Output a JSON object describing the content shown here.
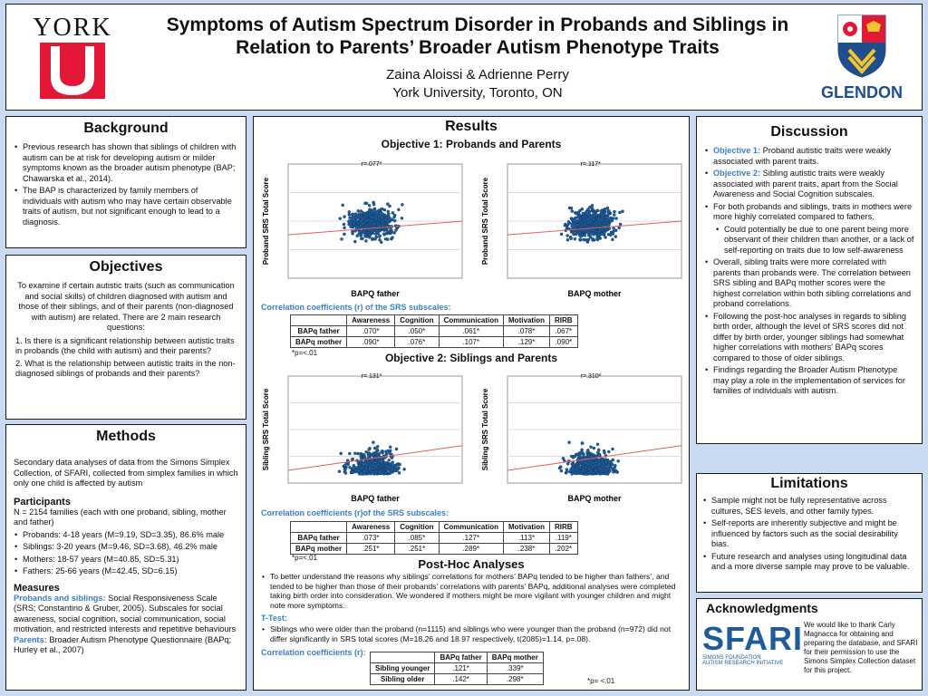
{
  "header": {
    "title_line1": "Symptoms of Autism Spectrum Disorder in Probands and Siblings in",
    "title_line2": "Relation to Parents’ Broader Autism Phenotype Traits",
    "authors": "Zaina Aloissi & Adrienne Perry",
    "affiliation": "York University, Toronto, ON",
    "left_logo_text": "YORK",
    "right_logo_text": "GLENDON"
  },
  "background": {
    "title": "Background",
    "bullets": [
      "Previous research has shown that siblings of children with autism can be at risk for developing autism or milder symptoms known as the broader autism phenotype (BAP; Chawarska et al., 2014).",
      "The BAP is characterized by family members of individuals with autism who may have certain observable traits of autism, but not significant enough to lead to a diagnosis."
    ]
  },
  "objectives": {
    "title": "Objectives",
    "intro": "To examine if certain autistic traits (such as communication and social skills) of children diagnosed with autism and those of their siblings, and of their parents (non-diagnosed with autism) are related. There are 2 main research questions:",
    "q1": "1. Is there is a significant relationship between autistic traits in probands (the child with autism) and their parents?",
    "q2": "2. What is the relationship between autistic traits in the non-diagnosed siblings of probands and their parents?"
  },
  "methods": {
    "title": "Methods",
    "intro": "Secondary data analyses of data from the Simons Simplex Collection, of SFARI, collected from simplex families in which only one child is affected by autism",
    "participants_title": "Participants",
    "participants_text": "N = 2154 families (each with one proband, sibling, mother and father)",
    "participants": [
      "Probands: 4-18 years (M=9.19, SD=3.35), 86.6% male",
      "Siblings: 3-20 years (M=9.46, SD=3.68), 46.2% male",
      "Mothers: 18-57 years (M=40.85, SD=5.31)",
      "Fathers: 25-66 years (M=42.45, SD=6.15)"
    ],
    "measures_title": "Measures",
    "measure1_label": "Probands and siblings:",
    "measure1_text": " Social Responsiveness Scale (SRS; Constantino & Gruber, 2005). Subscales for social awareness, social cognition, social communication, social motivation, and restricted interests and repetitive behaviours",
    "measure2_label": "Parents:",
    "measure2_text": " Broader Autism Phenotype Questionnaire (BAPq; Hurley et al., 2007)"
  },
  "results": {
    "title": "Results",
    "obj1_title": "Objective 1: Probands and Parents",
    "obj2_title": "Objective 2: Siblings and Parents",
    "plots": [
      {
        "r": "r=.077*",
        "xlabel": "BAPQ father",
        "ylabel": "Proband SRS Total Score"
      },
      {
        "r": "r=.117*",
        "xlabel": "BAPQ mother",
        "ylabel": "Proband SRS Total Score"
      },
      {
        "r": "r=.131*",
        "xlabel": "BAPQ father",
        "ylabel": "Sibling SRS Total Score"
      },
      {
        "r": "r=.310*",
        "xlabel": "BAPQ mother",
        "ylabel": "Sibling SRS Total Score"
      }
    ],
    "corr_caption1": "Correlation coefficients (r) of the SRS subscales:",
    "corr_caption2": "Correlation coefficients (r)of the SRS subscales:",
    "columns": [
      "",
      "Awareness",
      "Cognition",
      "Communication",
      "Motivation",
      "RIRB"
    ],
    "table1": [
      [
        "BAPq father",
        ".070*",
        ".050*",
        ".061*",
        ".078*",
        ".067*"
      ],
      [
        "BAPq mother",
        ".090*",
        ".076*",
        ".107*",
        ".129*",
        ".090*"
      ]
    ],
    "table2": [
      [
        "BAPq father",
        ".073*",
        ".085*",
        ".127*",
        ".113*",
        ".119*"
      ],
      [
        "BAPq mother",
        ".251*",
        ".251*",
        ".289*",
        ".238*",
        ".202*"
      ]
    ],
    "pnote": "*p=<.01",
    "posthoc_title": "Post-Hoc Analyses",
    "posthoc_text": "To better understand the reasons why siblings’ correlations for mothers’ BAPq tended to be higher than fathers’, and tended to be higher than those of their probands’ correlations with parents’ BAPq, additional analyses were completed taking birth order into consideration. We wondered if mothers might be more vigilant with younger children and might note more symptoms.",
    "ttest_label": "T-Test:",
    "ttest_text": "Siblings who were older than the proband (n=1115) and siblings who were younger than the proband (n=972) did not differ significantly in SRS total scores (M=18.26 and 18.97 respectively, t(2085)=1.14, p=.08).",
    "corr_caption3": "Correlation coefficients (r):",
    "columns3": [
      "",
      "BAPq father",
      "BAPq mother"
    ],
    "table3": [
      [
        "Sibling younger",
        ".121*",
        ".339*"
      ],
      [
        "Sibling older",
        ".142*",
        ".298*"
      ]
    ],
    "pnote3": "*p= <.01"
  },
  "discussion": {
    "title": "Discussion",
    "obj1_label": "Objective 1:",
    "obj1_text": " Proband autistic traits were weakly associated with parent traits.",
    "obj2_label": "Objective 2:",
    "obj2_text": " Sibling autistic traits were weakly associated with parent traits, apart from the Social Awareness and Social Cognition subscales.",
    "b3": "For both probands and siblings, traits in mothers were more highly correlated compared to fathers.",
    "b3_sub": "Could potentially be due to one parent being more observant of their children than another, or a lack of self-reporting on traits due to low self-awareness",
    "b4": "Overall, sibling traits were more correlated with parents than probands were. The correlation between SRS sibling and BAPq mother scores were the highest correlation within both sibling correlations and proband correlations.",
    "b5": "Following the post-hoc analyses in regards to sibling birth order, although the level of SRS scores did not differ by birth order, younger siblings had somewhat higher correlations with mothers' BAPq scores compared to those of older siblings.",
    "b6": "Findings regarding the Broader Autism Phenotype may play a role in the implementation of services for families of individuals with autism."
  },
  "limitations": {
    "title": "Limitations",
    "bullets": [
      "Sample might not be fully representative across cultures, SES levels, and other family types.",
      "Self-reports are inherently subjective and might be influenced by factors such as the social desirability bias.",
      "Future research and analyses using longitudinal data and a more diverse sample may prove to be valuable."
    ]
  },
  "acknowledgments": {
    "title": "Acknowledgments",
    "logo": "SFARI",
    "logo_sub1": "SIMONS FOUNDATION",
    "logo_sub2": "AUTISM RESEARCH INITIATIVE",
    "text": "We would like to thank Carly Magnacca for obtaining and preparing the database, and SFARI for their permission to use the Simons Simplex Collection dataset for this project."
  },
  "colors": {
    "accent": "#3b7fc4",
    "york_red": "#e31837",
    "glendon_blue": "#1f4e8c",
    "page_bg": "#c9daf1",
    "point": "#1f5c99"
  }
}
